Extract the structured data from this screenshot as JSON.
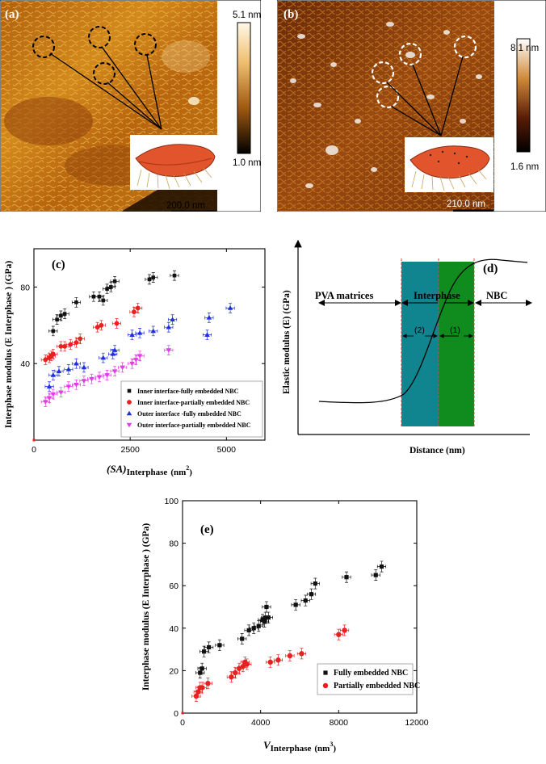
{
  "panel_a": {
    "label": "(a)",
    "colorbar_max": "5.1 nm",
    "colorbar_min": "1.0 nm",
    "scale_bar": "200.0 nm"
  },
  "panel_b": {
    "label": "(b)",
    "colorbar_max": "8.1 nm",
    "colorbar_min": "1.6 nm",
    "scale_bar": "210.0 nm"
  },
  "colors": {
    "black_series": "#111111",
    "red_series": "#e8201f",
    "blue_series": "#1f2ee0",
    "magenta_series": "#e53be6",
    "teal_region": "#11858f",
    "green_region": "#0f8c1d"
  },
  "panel_d": {
    "label": "(d)",
    "ylabel": "Elastic modulus (E) (GPa)",
    "xlabel": "Distance (nm)",
    "region_pva": "PVA matrices",
    "region_interphase": "Interphase",
    "region_nbc": "NBC",
    "sub_2": "(2)",
    "sub_1": "(1)"
  },
  "chart_data": [
    {
      "type": "scatter",
      "panel": "(c)",
      "title": "",
      "xlabel_main": "(SA)",
      "xlabel_sub": "Interphase",
      "xlabel_unit": "(nm",
      "xlabel_sup": "2",
      "ylabel": "Interphase modulus (E Interphase ) (GPa)",
      "xlim": [
        0,
        6000
      ],
      "ylim": [
        0,
        100
      ],
      "xticks": [
        0,
        2500,
        5000
      ],
      "yticks": [
        40,
        80
      ],
      "legend": "bottom-right",
      "origin_point": [
        0,
        0
      ],
      "series": [
        {
          "name": "Inner interface-fully embedded NBC",
          "marker": "square",
          "color": "#111111",
          "x": [
            500,
            600,
            700,
            800,
            1100,
            1550,
            1700,
            1800,
            1900,
            2000,
            2100,
            3000,
            3100,
            3650
          ],
          "y": [
            57,
            63,
            65,
            66,
            72,
            75,
            75,
            73,
            79,
            80,
            83,
            84,
            85,
            86
          ]
        },
        {
          "name": "Inner interface-partially embedded NBC",
          "marker": "circle",
          "color": "#e8201f",
          "x": [
            300,
            400,
            450,
            500,
            700,
            800,
            950,
            1100,
            1200,
            1650,
            1750,
            2150,
            2600,
            2700
          ],
          "y": [
            42,
            43,
            44,
            45,
            49,
            49,
            50,
            51,
            53,
            59,
            60,
            61,
            67,
            69
          ]
        },
        {
          "name": "Outer interface -fully embedded NBC",
          "marker": "triangle-up",
          "color": "#1f2ee0",
          "x": [
            400,
            500,
            650,
            900,
            1100,
            1300,
            1800,
            2050,
            2100,
            2550,
            2750,
            3100,
            3500,
            3600,
            4500,
            4550,
            5100
          ],
          "y": [
            28,
            34,
            36,
            37,
            40,
            38,
            43,
            45,
            47,
            55,
            56,
            57,
            59,
            63,
            55,
            64,
            69
          ]
        },
        {
          "name": "Outer interface-partially embedded NBC",
          "marker": "triangle-down",
          "color": "#e53be6",
          "x": [
            300,
            400,
            500,
            700,
            900,
            1100,
            1300,
            1500,
            1700,
            1900,
            2100,
            2300,
            2550,
            2650,
            2750,
            3500
          ],
          "y": [
            20,
            22,
            24,
            25,
            28,
            29,
            31,
            32,
            33,
            34,
            36,
            38,
            40,
            42,
            44,
            47
          ]
        }
      ]
    },
    {
      "type": "scatter",
      "panel": "(e)",
      "title": "",
      "xlabel_main": "V",
      "xlabel_sub": "Interphase",
      "xlabel_unit": "(nm",
      "xlabel_sup": "3",
      "ylabel": "Interphase modulus (E Interphase ) (GPa)",
      "xlim": [
        0,
        12000
      ],
      "ylim": [
        0,
        100
      ],
      "xticks": [
        0,
        4000,
        8000,
        12000
      ],
      "yticks": [
        0,
        20,
        40,
        60,
        80,
        100
      ],
      "legend": "bottom-right",
      "origin_point": [
        0,
        0
      ],
      "series": [
        {
          "name": "Fully embedded NBC",
          "marker": "square",
          "color": "#111111",
          "x": [
            900,
            1000,
            1100,
            1350,
            1900,
            3050,
            3400,
            3650,
            3900,
            4100,
            4200,
            4250,
            4300,
            4400,
            5800,
            6300,
            6600,
            6800,
            8400,
            9900,
            10200
          ],
          "y": [
            19,
            21,
            29,
            31,
            32,
            35,
            39,
            40,
            41,
            44,
            43,
            45,
            50,
            45,
            51,
            53,
            56,
            61,
            64,
            65,
            69
          ]
        },
        {
          "name": "Partially embedded NBC",
          "marker": "circle",
          "color": "#e8201f",
          "x": [
            700,
            800,
            900,
            1000,
            1300,
            2500,
            2700,
            2900,
            3100,
            3200,
            3300,
            4500,
            4900,
            5500,
            6100,
            8000,
            8300
          ],
          "y": [
            8,
            10,
            12,
            12,
            14,
            17,
            19,
            21,
            22,
            24,
            23,
            24,
            25,
            27,
            28,
            37,
            39
          ]
        }
      ]
    }
  ]
}
